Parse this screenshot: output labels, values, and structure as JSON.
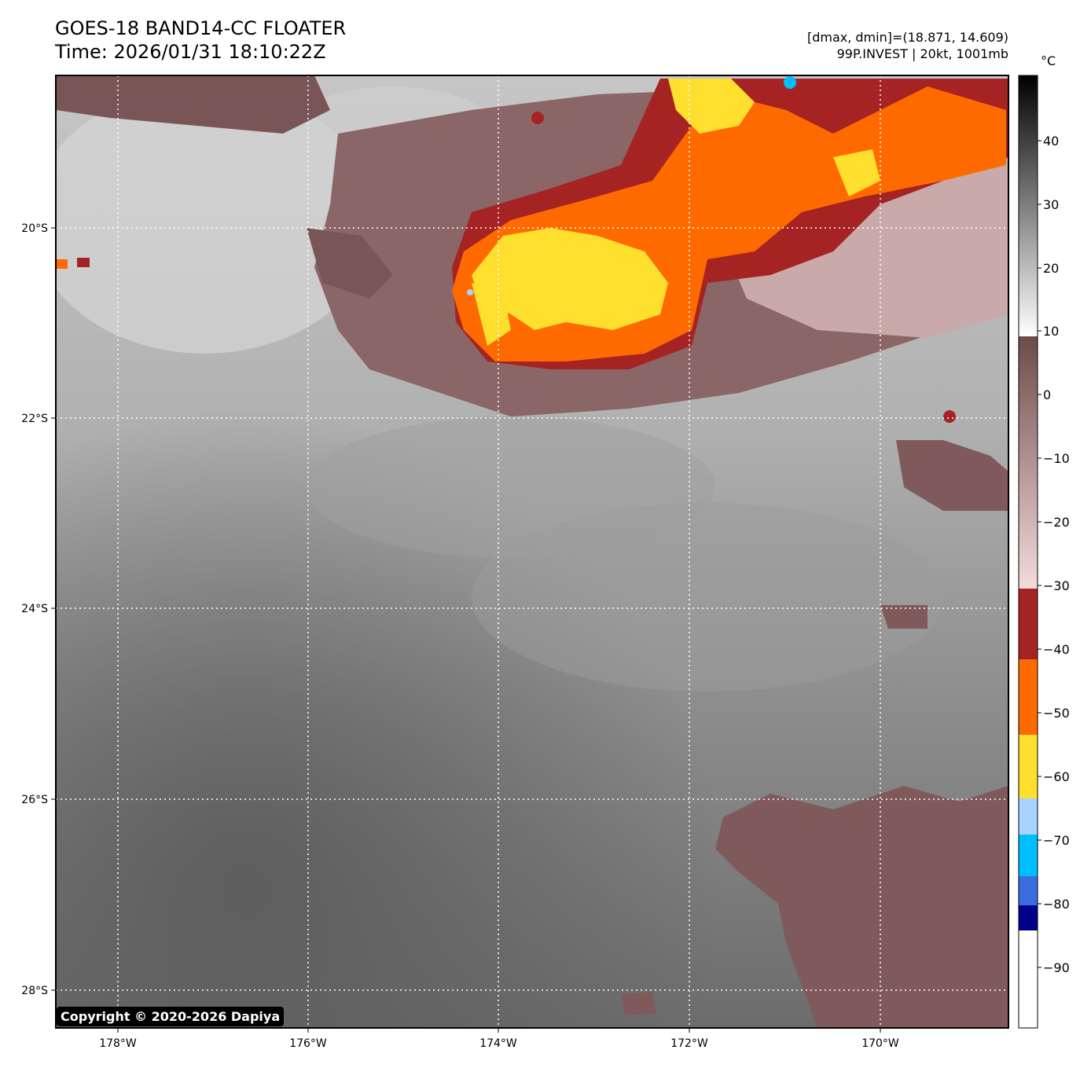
{
  "header": {
    "title_line1": "GOES-18 BAND14-CC FLOATER",
    "title_line2": "Time: 2026/01/31 18:10:22Z",
    "info_line1": "[dmax, dmin]=(18.871, 14.609)",
    "info_line2": "99P.INVEST | 20kt, 1001mb"
  },
  "map": {
    "lat_labels": [
      "20°S",
      "22°S",
      "24°S",
      "26°S",
      "28°S"
    ],
    "lon_labels": [
      "178°W",
      "176°W",
      "174°W",
      "172°W",
      "170°W"
    ],
    "gridlines": "dotted-white"
  },
  "colorbar": {
    "unit": "°C",
    "tick_labels": [
      "40",
      "30",
      "20",
      "10",
      "0",
      "−10",
      "−20",
      "−30",
      "−40",
      "−50",
      "−60",
      "−70",
      "−80",
      "−90"
    ],
    "bands": [
      {
        "range": "above 10",
        "style": "grayscale",
        "colors": [
          "#ffffff",
          "#000000"
        ]
      },
      {
        "range": "10 to -30",
        "style": "brown-pink",
        "colors": [
          "#6e4a4a",
          "#f4dcdc"
        ]
      },
      {
        "range": "-30 to -41",
        "color": "#a52323"
      },
      {
        "range": "-41 to -53",
        "color": "#ff6a00"
      },
      {
        "range": "-53 to -63",
        "color": "#ffdf2e"
      },
      {
        "range": "-63 to -69",
        "color": "#a6d4ff"
      },
      {
        "range": "-69 to -76",
        "color": "#00bfff"
      },
      {
        "range": "-76 to -80",
        "color": "#3b6de0"
      },
      {
        "range": "-80 to -84",
        "color": "#00008b"
      },
      {
        "range": "below -84",
        "color": "#ffffff"
      }
    ]
  },
  "footer": {
    "copyright": "Copyright © 2020-2026 Dapiya"
  }
}
